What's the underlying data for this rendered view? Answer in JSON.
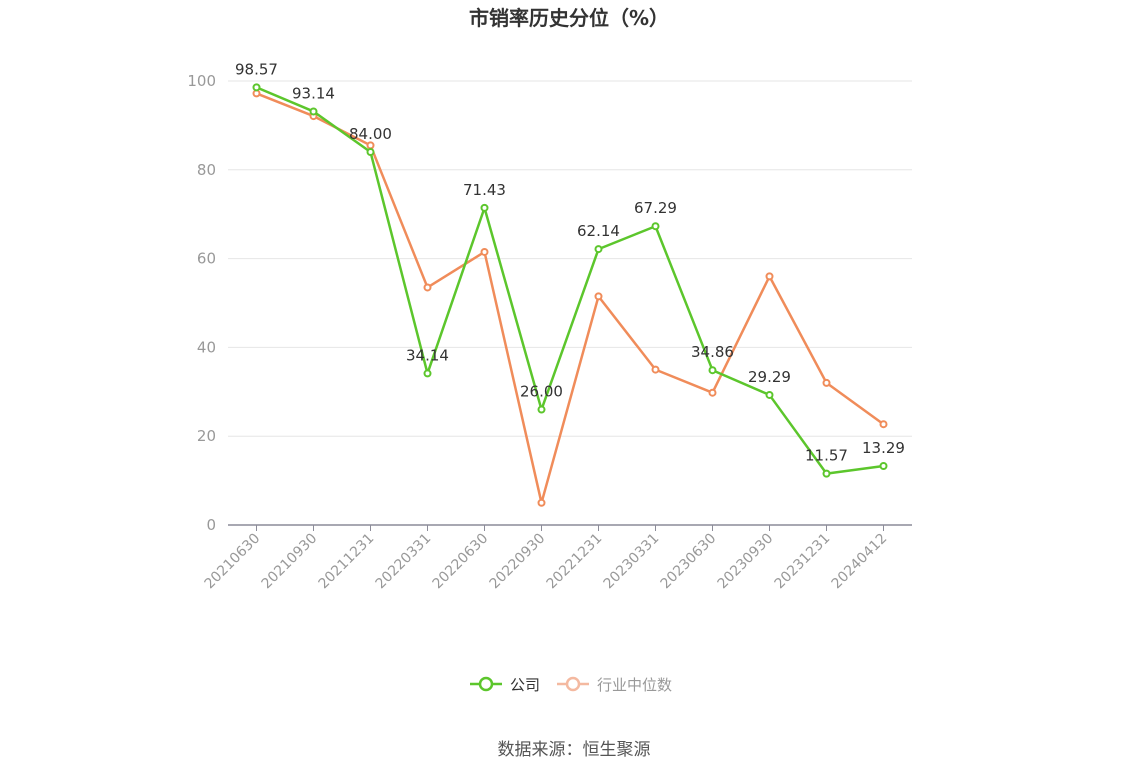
{
  "chart_data": {
    "type": "line",
    "title": "市销率历史分位（%）",
    "xlabel": "",
    "ylabel": "",
    "categories": [
      "20210630",
      "20210930",
      "20211231",
      "20220331",
      "20220630",
      "20220930",
      "20221231",
      "20230331",
      "20230630",
      "20230930",
      "20231231",
      "20240412"
    ],
    "ylim": [
      0,
      100
    ],
    "yticks": [
      0,
      20,
      40,
      60,
      80,
      100
    ],
    "grid": true,
    "legend_position": "bottom",
    "series": [
      {
        "name": "公司",
        "color": "#5cc62c",
        "values": [
          98.57,
          93.14,
          84.0,
          34.14,
          71.43,
          26.0,
          62.14,
          67.29,
          34.86,
          29.29,
          11.57,
          13.29
        ],
        "labels": [
          "98.57",
          "93.14",
          "84.00",
          "34.14",
          "71.43",
          "26.00",
          "62.14",
          "67.29",
          "34.86",
          "29.29",
          "11.57",
          "13.29"
        ]
      },
      {
        "name": "行业中位数",
        "color": "#f08c5a",
        "values": [
          97.2,
          92.1,
          85.5,
          53.5,
          61.5,
          5.0,
          51.5,
          35.0,
          29.8,
          56.0,
          32.0,
          22.7
        ]
      }
    ]
  },
  "source": "数据来源：恒生聚源"
}
